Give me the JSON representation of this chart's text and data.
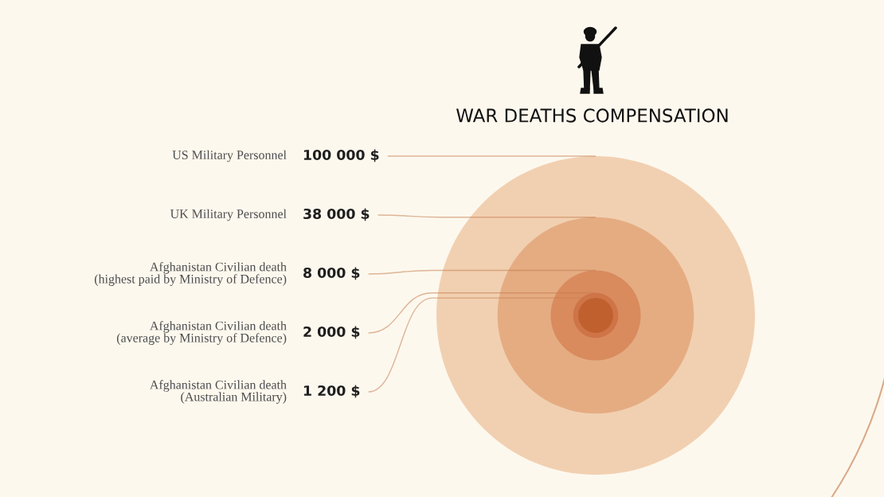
{
  "chart_data": {
    "type": "other",
    "title": "WAR DEATHS COMPENSATION",
    "categories": [
      "US Military Personnel",
      "UK Military Personnel",
      "Afghanistan Civilian death\n(highest paid by Ministry of Defence)",
      "Afghanistan Civilian death\n(average by Ministry of Defence)",
      "Afghanistan Civilian death\n(Australian Military)"
    ],
    "values": [
      100000,
      38000,
      8000,
      2000,
      1200
    ],
    "value_labels": [
      "100 000 $",
      "38 000 $",
      "8 000 $",
      "2 000 $",
      "1 200 $"
    ],
    "colors": [
      "#f1d0b1",
      "#e5ac82",
      "#d98b5e",
      "#ce7447",
      "#c0602e"
    ]
  }
}
